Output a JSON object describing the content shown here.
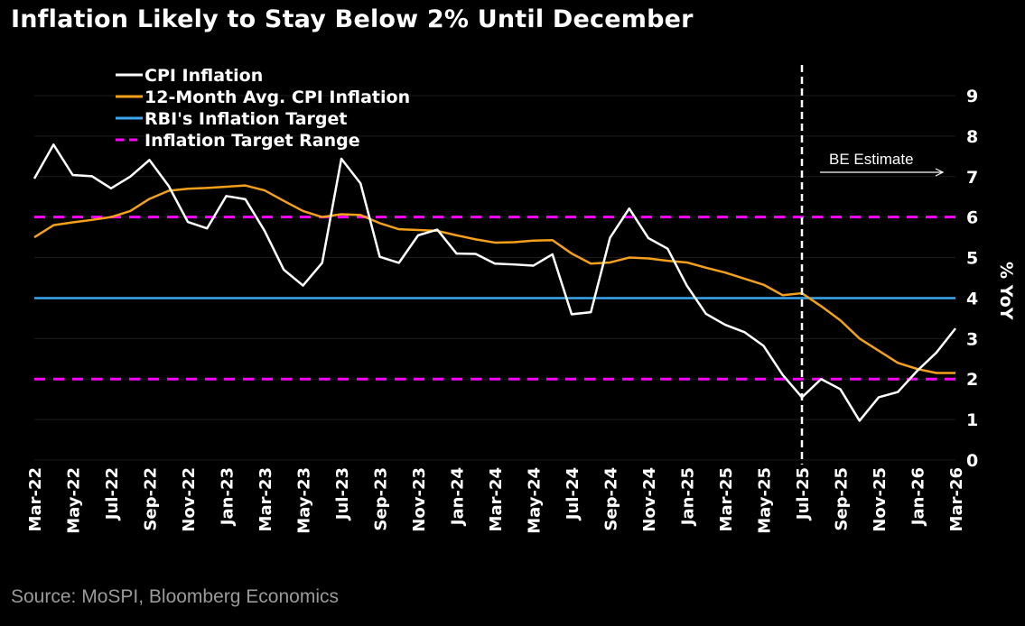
{
  "chart_data": {
    "type": "line",
    "title": "Inflation Likely to Stay Below 2% Until December",
    "source": "Source: MoSPI, Bloomberg Economics",
    "ylabel": "% YoY",
    "ylim": [
      0,
      9
    ],
    "yticks": [
      0,
      1,
      2,
      3,
      4,
      5,
      6,
      7,
      8,
      9
    ],
    "grid": true,
    "legend_position": "top-left",
    "x": [
      "Mar-22",
      "Apr-22",
      "May-22",
      "Jun-22",
      "Jul-22",
      "Aug-22",
      "Sep-22",
      "Oct-22",
      "Nov-22",
      "Dec-22",
      "Jan-23",
      "Feb-23",
      "Mar-23",
      "Apr-23",
      "May-23",
      "Jun-23",
      "Jul-23",
      "Aug-23",
      "Sep-23",
      "Oct-23",
      "Nov-23",
      "Dec-23",
      "Jan-24",
      "Feb-24",
      "Mar-24",
      "Apr-24",
      "May-24",
      "Jun-24",
      "Jul-24",
      "Aug-24",
      "Sep-24",
      "Oct-24",
      "Nov-24",
      "Dec-24",
      "Jan-25",
      "Feb-25",
      "Mar-25",
      "Apr-25",
      "May-25",
      "Jun-25",
      "Jul-25",
      "Aug-25",
      "Sep-25",
      "Oct-25",
      "Nov-25",
      "Dec-25",
      "Jan-26",
      "Feb-26",
      "Mar-26"
    ],
    "xtick_labels": [
      "Mar-22",
      "May-22",
      "Jul-22",
      "Sep-22",
      "Nov-22",
      "Jan-23",
      "Mar-23",
      "May-23",
      "Jul-23",
      "Sep-23",
      "Nov-23",
      "Jan-24",
      "Mar-24",
      "May-24",
      "Jul-24",
      "Sep-24",
      "Nov-24",
      "Jan-25",
      "Mar-25",
      "May-25",
      "Jul-25",
      "Sep-25",
      "Nov-25",
      "Jan-26",
      "Mar-26"
    ],
    "series": [
      {
        "name": "CPI Inflation",
        "color": "#ffffff",
        "values": [
          6.95,
          7.79,
          7.04,
          7.01,
          6.71,
          7.0,
          7.41,
          6.77,
          5.88,
          5.72,
          6.52,
          6.44,
          5.66,
          4.7,
          4.31,
          4.87,
          7.44,
          6.83,
          5.02,
          4.87,
          5.55,
          5.69,
          5.1,
          5.09,
          4.85,
          4.83,
          4.8,
          5.08,
          3.6,
          3.65,
          5.49,
          6.21,
          5.48,
          5.22,
          4.31,
          3.61,
          3.34,
          3.16,
          2.82,
          2.1,
          1.55,
          2.0,
          1.75,
          0.97,
          1.55,
          1.68,
          2.2,
          2.65,
          3.25
        ]
      },
      {
        "name": "12-Month Avg. CPI Inflation",
        "color": "#f5a01a",
        "values": [
          5.5,
          5.8,
          5.87,
          5.93,
          6.0,
          6.15,
          6.45,
          6.65,
          6.7,
          6.72,
          6.75,
          6.78,
          6.66,
          6.4,
          6.15,
          6.0,
          6.07,
          6.05,
          5.85,
          5.7,
          5.68,
          5.66,
          5.55,
          5.45,
          5.37,
          5.38,
          5.42,
          5.43,
          5.1,
          4.85,
          4.88,
          5.0,
          4.98,
          4.92,
          4.88,
          4.75,
          4.63,
          4.48,
          4.33,
          4.07,
          4.12,
          3.8,
          3.45,
          3.0,
          2.7,
          2.4,
          2.25,
          2.15,
          2.15
        ]
      },
      {
        "name": "RBI's Inflation Target",
        "color": "#3ba6f2",
        "constant": 4
      },
      {
        "name": "Inflation Target Range",
        "color": "#ff00ff",
        "dashed": true,
        "constants": [
          2,
          6
        ]
      }
    ],
    "annotations": [
      {
        "text": "BE Estimate",
        "at_x": "Jul-25"
      }
    ]
  }
}
